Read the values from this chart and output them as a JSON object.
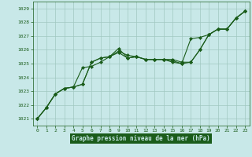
{
  "title": "Graphe pression niveau de la mer (hPa)",
  "background_color": "#c8e8e8",
  "grid_color": "#a0c8c0",
  "line_color": "#1a5c1a",
  "marker_color": "#1a5c1a",
  "xlabel_bg": "#1a5c1a",
  "xlabel_fg": "#c8e8e8",
  "tick_color": "#1a5c1a",
  "xlim": [
    -0.5,
    23.5
  ],
  "ylim": [
    1020.5,
    1029.5
  ],
  "xticks": [
    0,
    1,
    2,
    3,
    4,
    5,
    6,
    7,
    8,
    9,
    10,
    11,
    12,
    13,
    14,
    15,
    16,
    17,
    18,
    19,
    20,
    21,
    22,
    23
  ],
  "yticks": [
    1021,
    1022,
    1023,
    1024,
    1025,
    1026,
    1027,
    1028,
    1029
  ],
  "series": [
    {
      "x": [
        0,
        1,
        2,
        3,
        4,
        5,
        6,
        7,
        8,
        9,
        10,
        11,
        12,
        13,
        14,
        15,
        16,
        17,
        18,
        19,
        20,
        21,
        22,
        23
      ],
      "y": [
        1021.0,
        1021.8,
        1022.8,
        1023.2,
        1023.3,
        1023.5,
        1025.1,
        1025.4,
        1025.5,
        1025.8,
        1025.4,
        1025.5,
        1025.3,
        1025.3,
        1025.3,
        1025.3,
        1025.1,
        1025.1,
        1026.0,
        1027.1,
        1027.5,
        1027.5,
        1028.3,
        1028.8
      ]
    },
    {
      "x": [
        0,
        1,
        2,
        3,
        4,
        5,
        6,
        7,
        8,
        9,
        10,
        11,
        12,
        13,
        14,
        15,
        16,
        17,
        18,
        19,
        20,
        21,
        22,
        23
      ],
      "y": [
        1021.0,
        1021.8,
        1022.8,
        1023.2,
        1023.3,
        1024.7,
        1024.8,
        1025.1,
        1025.5,
        1025.9,
        1025.6,
        1025.5,
        1025.3,
        1025.3,
        1025.3,
        1025.2,
        1025.0,
        1026.8,
        1026.9,
        1027.1,
        1027.5,
        1027.5,
        1028.3,
        1028.8
      ]
    },
    {
      "x": [
        0,
        1,
        2,
        3,
        4,
        5,
        6,
        7,
        8,
        9,
        10,
        11,
        12,
        13,
        14,
        15,
        16,
        17,
        18,
        19,
        20,
        21,
        22,
        23
      ],
      "y": [
        1021.0,
        1021.8,
        1022.8,
        1023.2,
        1023.3,
        1023.5,
        1025.1,
        1025.4,
        1025.5,
        1026.1,
        1025.4,
        1025.5,
        1025.3,
        1025.3,
        1025.3,
        1025.1,
        1025.0,
        1025.1,
        1026.0,
        1027.1,
        1027.5,
        1027.5,
        1028.3,
        1028.8
      ]
    }
  ]
}
